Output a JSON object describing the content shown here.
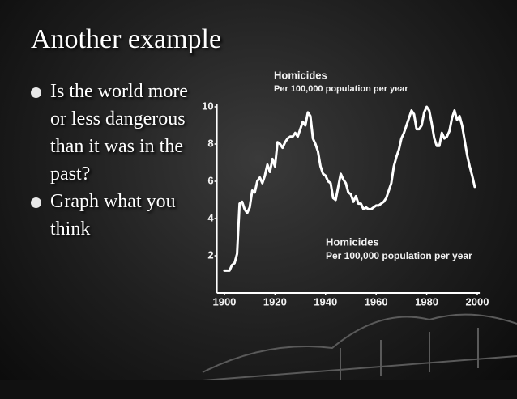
{
  "slide": {
    "title": "Another example",
    "bullets": [
      "Is the world more or less dangerous than it was in the past?",
      "Graph what you think"
    ]
  },
  "chart_data": {
    "type": "line",
    "annotations": [
      {
        "title": "Homicides",
        "subtitle": "Per 100,000 population per year"
      },
      {
        "title": "Homicides",
        "subtitle": "Per 100,000 population per year"
      }
    ],
    "x": [
      1900,
      1901,
      1902,
      1903,
      1904,
      1905,
      1906,
      1907,
      1908,
      1909,
      1910,
      1911,
      1912,
      1913,
      1914,
      1915,
      1916,
      1917,
      1918,
      1919,
      1920,
      1921,
      1922,
      1923,
      1924,
      1925,
      1926,
      1927,
      1928,
      1929,
      1930,
      1931,
      1932,
      1933,
      1934,
      1935,
      1936,
      1937,
      1938,
      1939,
      1940,
      1941,
      1942,
      1943,
      1944,
      1945,
      1946,
      1947,
      1948,
      1949,
      1950,
      1951,
      1952,
      1953,
      1954,
      1955,
      1956,
      1957,
      1958,
      1959,
      1960,
      1961,
      1962,
      1963,
      1964,
      1965,
      1966,
      1967,
      1968,
      1969,
      1970,
      1971,
      1972,
      1973,
      1974,
      1975,
      1976,
      1977,
      1978,
      1979,
      1980,
      1981,
      1982,
      1983,
      1984,
      1985,
      1986,
      1987,
      1988,
      1989,
      1990,
      1991,
      1992,
      1993,
      1994,
      1995,
      1996,
      1997,
      1998,
      1999
    ],
    "values": [
      1.2,
      1.2,
      1.2,
      1.5,
      1.6,
      2.1,
      4.8,
      4.9,
      4.5,
      4.3,
      4.6,
      5.5,
      5.4,
      6.0,
      6.2,
      5.9,
      6.3,
      6.9,
      6.5,
      7.2,
      6.8,
      8.1,
      8.0,
      7.8,
      8.1,
      8.3,
      8.4,
      8.4,
      8.6,
      8.4,
      8.8,
      9.2,
      9.0,
      9.7,
      9.5,
      8.3,
      8.0,
      7.6,
      6.8,
      6.4,
      6.3,
      6.0,
      5.9,
      5.1,
      5.0,
      5.7,
      6.4,
      6.1,
      5.9,
      5.4,
      5.3,
      4.9,
      5.2,
      4.8,
      4.8,
      4.5,
      4.6,
      4.5,
      4.5,
      4.6,
      4.7,
      4.7,
      4.8,
      4.9,
      5.1,
      5.5,
      5.9,
      6.8,
      7.3,
      7.7,
      8.3,
      8.6,
      9.0,
      9.4,
      9.8,
      9.6,
      8.8,
      8.8,
      9.0,
      9.7,
      10.0,
      9.8,
      9.1,
      8.3,
      7.9,
      7.9,
      8.6,
      8.3,
      8.4,
      8.7,
      9.4,
      9.8,
      9.3,
      9.5,
      9.0,
      8.2,
      7.4,
      6.8,
      6.3,
      5.7
    ],
    "color": "#ffffff",
    "xlim": [
      1897,
      2001
    ],
    "xticks": [
      1900,
      1920,
      1940,
      1960,
      1980,
      2000
    ],
    "ylim": [
      0,
      10
    ],
    "yticks": [
      2,
      4,
      6,
      8,
      10
    ],
    "grid": false
  }
}
